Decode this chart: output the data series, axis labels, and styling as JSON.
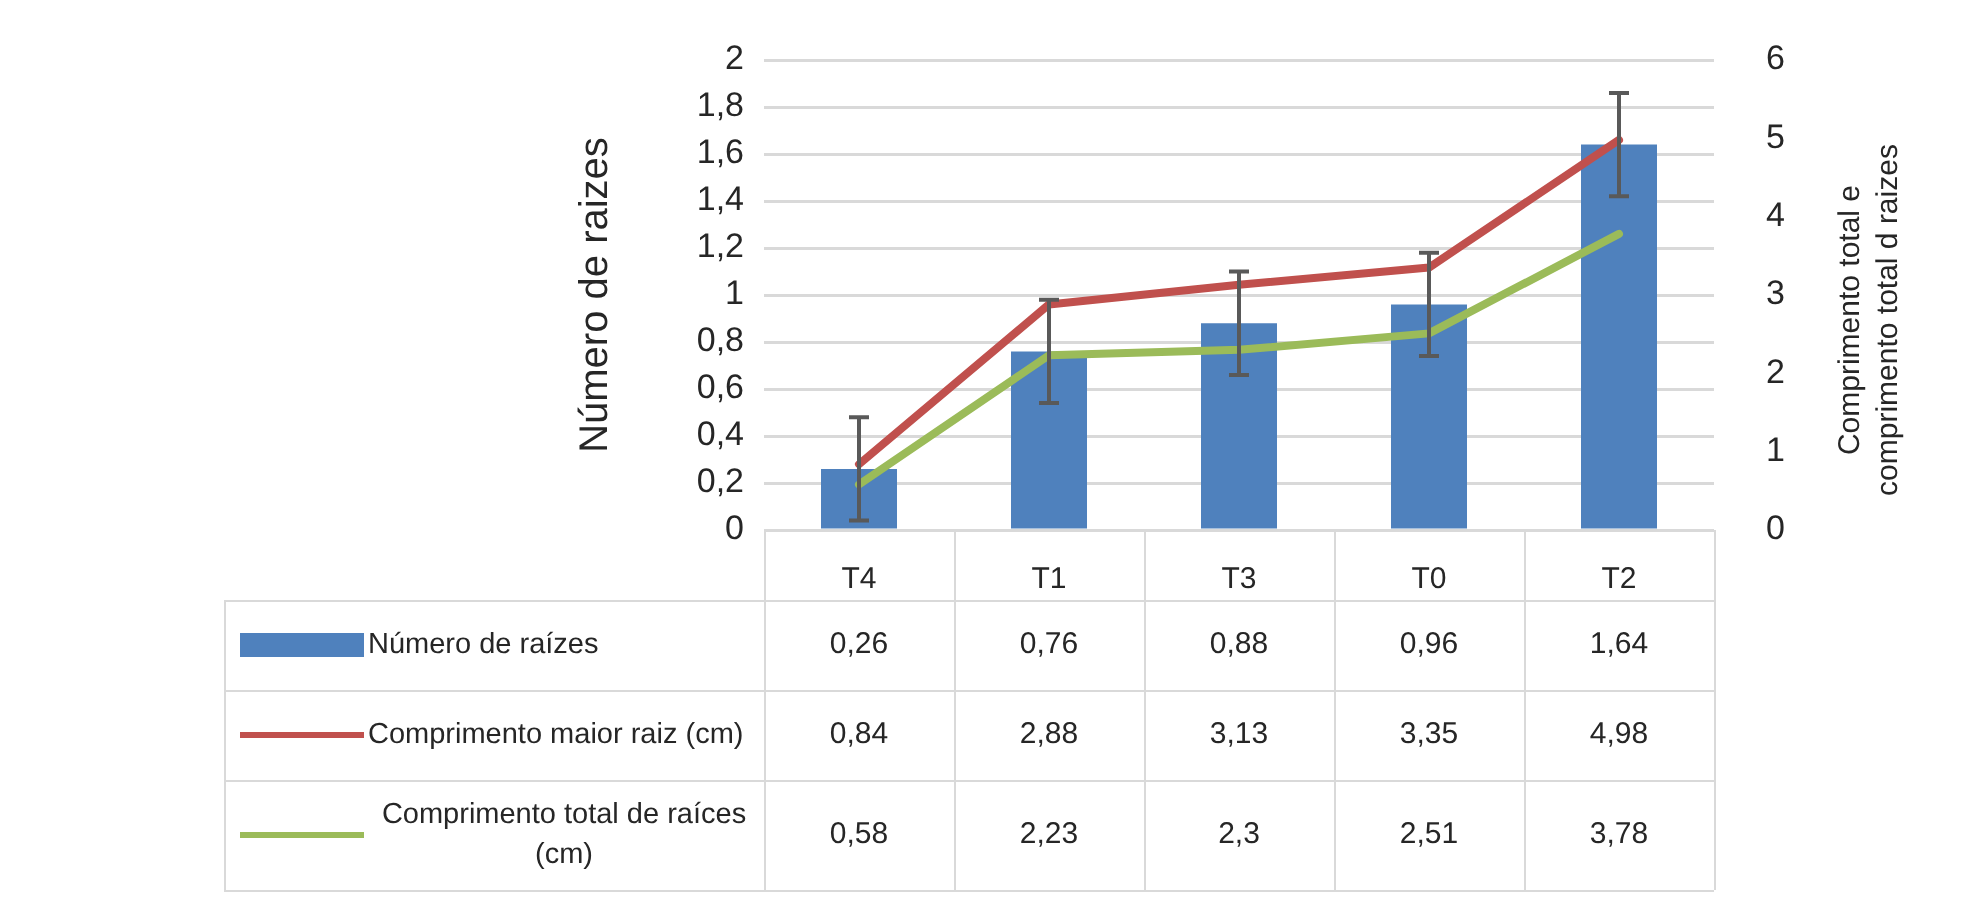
{
  "chart_data": {
    "type": "bar",
    "ylabel": "Número de raizes",
    "y2label": "Comprimento total e comprimento total d raizes",
    "categories": [
      "T4",
      "T1",
      "T3",
      "T0",
      "T2"
    ],
    "series": [
      {
        "name": "Número de raízes",
        "color": "#4f81bd",
        "values": [
          0.26,
          0.76,
          0.88,
          0.96,
          1.64
        ],
        "errors": [
          0.22,
          0.22,
          0.22,
          0.22,
          0.22
        ],
        "value_labels": [
          "0,26",
          "0,76",
          "0,88",
          "0,96",
          "1,64"
        ]
      },
      {
        "name": "Comprimento maior raiz (cm)",
        "type": "line",
        "axis": "y2",
        "color": "#c0504d",
        "values": [
          0.84,
          2.88,
          3.13,
          3.35,
          4.98
        ],
        "value_labels": [
          "0,84",
          "2,88",
          "3,13",
          "3,35",
          "4,98"
        ]
      },
      {
        "name": "Comprimento total de raíces (cm)",
        "type": "line",
        "axis": "y2",
        "color": "#9bbb59",
        "values": [
          0.58,
          2.23,
          2.3,
          2.51,
          3.78
        ],
        "value_labels": [
          "0,58",
          "2,23",
          "2,3",
          "2,51",
          "3,78"
        ]
      }
    ],
    "ylim": [
      0,
      2
    ],
    "yticks": [
      0,
      {
        "value": 0.2,
        "label": "0,2"
      },
      {
        "value": 0.4,
        "label": "0,4"
      },
      {
        "value": 0.6,
        "label": "0,6"
      },
      {
        "value": 0.8,
        "label": "0,8"
      },
      1,
      {
        "value": 1.2,
        "label": "1,2"
      },
      {
        "value": 1.4,
        "label": "1,4"
      },
      {
        "value": 1.6,
        "label": "1,6"
      },
      {
        "value": 1.8,
        "label": "1,8"
      },
      2
    ],
    "y2lim": [
      0,
      6
    ],
    "y2ticks": [
      0,
      1,
      2,
      3,
      4,
      5,
      6
    ],
    "grid": "y",
    "legend": "bottom left",
    "marker": "none"
  }
}
